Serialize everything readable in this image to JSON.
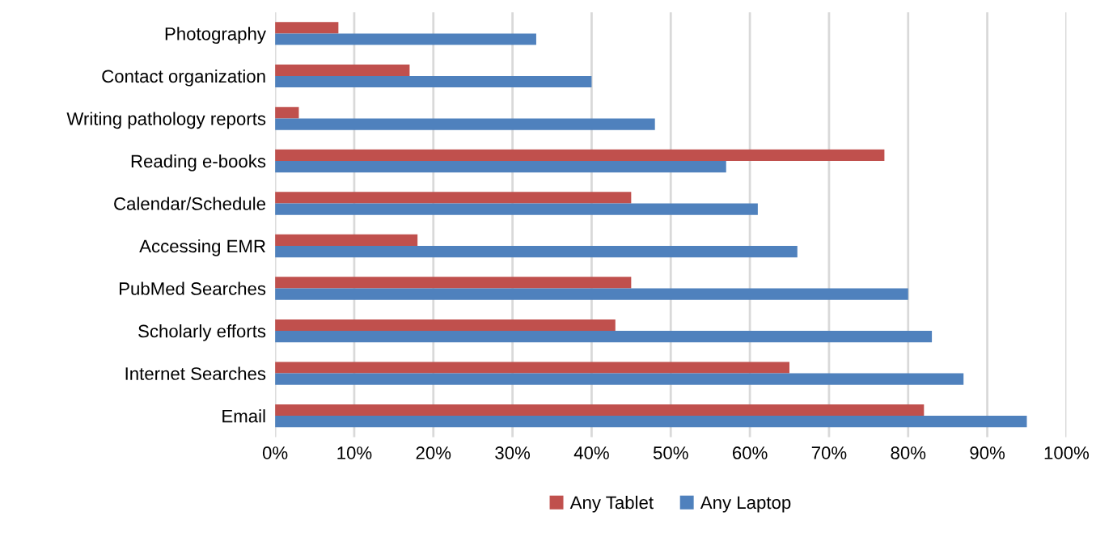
{
  "chart_data": {
    "type": "bar",
    "orientation": "horizontal",
    "categories": [
      "Photography",
      "Contact organization",
      "Writing pathology reports",
      "Reading e-books",
      "Calendar/Schedule",
      "Accessing EMR",
      "PubMed Searches",
      "Scholarly efforts",
      "Internet Searches",
      "Email"
    ],
    "series": [
      {
        "name": "Any Tablet",
        "color": "#c0504d",
        "values": [
          8,
          17,
          3,
          77,
          45,
          18,
          45,
          43,
          65,
          82
        ]
      },
      {
        "name": "Any Laptop",
        "color": "#4f81bd",
        "values": [
          33,
          40,
          48,
          57,
          61,
          66,
          80,
          83,
          87,
          95
        ]
      }
    ],
    "xlim": [
      0,
      100
    ],
    "xticks": [
      {
        "value": 0,
        "label": "0%"
      },
      {
        "value": 10,
        "label": "10%"
      },
      {
        "value": 20,
        "label": "20%"
      },
      {
        "value": 30,
        "label": "30%"
      },
      {
        "value": 40,
        "label": "40%"
      },
      {
        "value": 50,
        "label": "50%"
      },
      {
        "value": 60,
        "label": "60%"
      },
      {
        "value": 70,
        "label": "70%"
      },
      {
        "value": 80,
        "label": "80%"
      },
      {
        "value": 90,
        "label": "90%"
      },
      {
        "value": 100,
        "label": "100%"
      }
    ],
    "grid": "x",
    "legend": "bottom"
  }
}
